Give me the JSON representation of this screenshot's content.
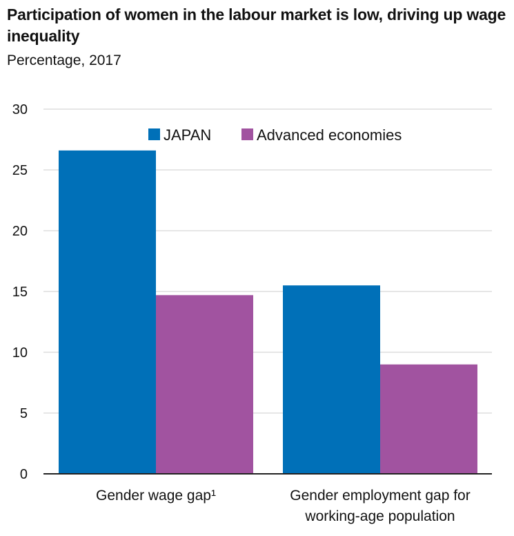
{
  "header": {
    "title": "Participation of women in the labour market is low, driving up wage inequality",
    "subtitle": "Percentage, 2017"
  },
  "colors": {
    "japan": "#0070B8",
    "advanced": "#A153A0",
    "grid": "#DDDDDD",
    "axis": "#222222"
  },
  "chart_data": {
    "type": "bar",
    "title": "Participation of women in the labour market is low, driving up wage inequality",
    "subtitle": "Percentage, 2017",
    "categories": [
      [
        "Gender wage gap¹"
      ],
      [
        "Gender employment gap for",
        "working-age population"
      ]
    ],
    "series": [
      {
        "name": "JAPAN",
        "values": [
          26.6,
          15.5
        ]
      },
      {
        "name": "Advanced economies",
        "values": [
          14.7,
          9.0
        ]
      }
    ],
    "ylim": [
      0,
      30
    ],
    "yticks": [
      0,
      5,
      10,
      15,
      20,
      25,
      30
    ],
    "grid": true,
    "legend": "top-center"
  }
}
